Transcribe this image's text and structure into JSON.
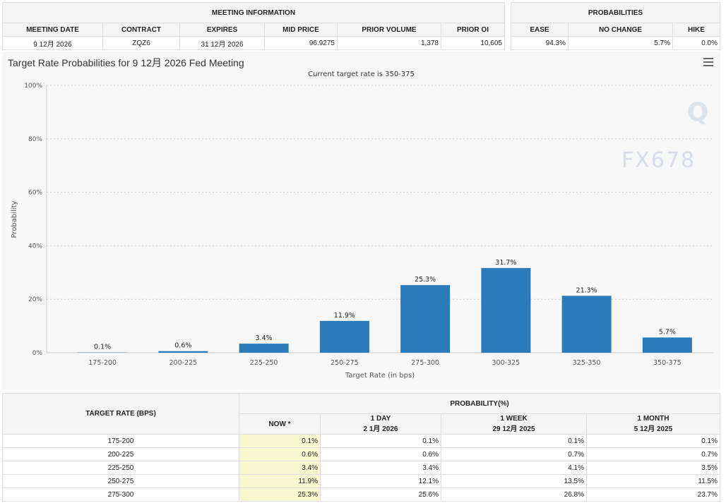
{
  "meeting_info": {
    "title": "MEETING INFORMATION",
    "headers": [
      "MEETING DATE",
      "CONTRACT",
      "EXPIRES",
      "MID PRICE",
      "PRIOR VOLUME",
      "PRIOR OI"
    ],
    "values": [
      "9 12月 2026",
      "ZQZ6",
      "31 12月 2026",
      "96.9275",
      "1,378",
      "10,605"
    ]
  },
  "probabilities": {
    "title": "PROBABILITIES",
    "headers": [
      "EASE",
      "NO CHANGE",
      "HIKE"
    ],
    "values": [
      "94.3%",
      "5.7%",
      "0.0%"
    ]
  },
  "chart_data": {
    "type": "bar",
    "title": "Target Rate Probabilities for 9 12月 2026 Fed Meeting",
    "subtitle": "Current target rate is 350-375",
    "xlabel": "Target Rate (in bps)",
    "ylabel": "Probability",
    "categories": [
      "175-200",
      "200-225",
      "225-250",
      "250-275",
      "275-300",
      "300-325",
      "325-350",
      "350-375"
    ],
    "values": [
      0.1,
      0.6,
      3.4,
      11.9,
      25.3,
      31.7,
      21.3,
      5.7
    ],
    "labels": [
      "0.1%",
      "0.6%",
      "3.4%",
      "11.9%",
      "25.3%",
      "31.7%",
      "21.3%",
      "5.7%"
    ],
    "ylim": [
      0,
      100
    ],
    "yticks": [
      "0%",
      "20%",
      "40%",
      "60%",
      "80%",
      "100%"
    ],
    "grid": true,
    "color": "#2b7bba"
  },
  "table": {
    "col_header": "TARGET RATE (BPS)",
    "group_header": "PROBABILITY(%)",
    "cols": [
      {
        "l1": "NOW *",
        "l2": ""
      },
      {
        "l1": "1 DAY",
        "l2": "2 1月 2026"
      },
      {
        "l1": "1 WEEK",
        "l2": "29 12月 2025"
      },
      {
        "l1": "1 MONTH",
        "l2": "5 12月 2025"
      }
    ],
    "rows": [
      [
        "175-200",
        "0.1%",
        "0.1%",
        "0.1%",
        "0.1%"
      ],
      [
        "200-225",
        "0.6%",
        "0.6%",
        "0.7%",
        "0.7%"
      ],
      [
        "225-250",
        "3.4%",
        "3.4%",
        "4.1%",
        "3.5%"
      ],
      [
        "250-275",
        "11.9%",
        "12.1%",
        "13.5%",
        "11.5%"
      ],
      [
        "275-300",
        "25.3%",
        "25.6%",
        "26.8%",
        "23.7%"
      ]
    ]
  },
  "watermark": "FX678"
}
